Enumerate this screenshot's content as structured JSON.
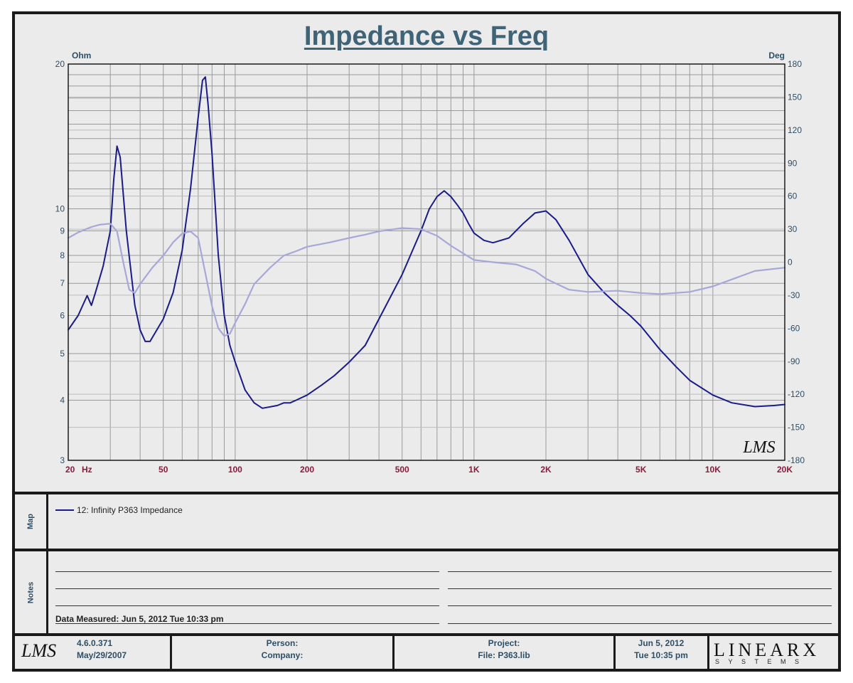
{
  "title": "Impedance vs Freq",
  "left_unit": "Ohm",
  "right_unit": "Deg",
  "y_left_ticks": [
    "20",
    "10",
    "9",
    "8",
    "7",
    "6",
    "5",
    "4",
    "3"
  ],
  "y_right_ticks": [
    "180",
    "150",
    "120",
    "90",
    "60",
    "30",
    "0",
    "-30",
    "-60",
    "-90",
    "-120",
    "-150",
    "-180"
  ],
  "x_ticks": [
    "20",
    "Hz",
    "50",
    "100",
    "200",
    "500",
    "1K",
    "2K",
    "5K",
    "10K",
    "20K"
  ],
  "watermark": "LMS",
  "map_label": "Map",
  "notes_label": "Notes",
  "legend": {
    "label": "12: Infinity P363 Impedance"
  },
  "notes": {
    "measured": "Data Measured: Jun  5, 2012  Tue 10:33 pm"
  },
  "footer": {
    "logo": "LMS",
    "version": "4.6.0.371",
    "version_date": "May/29/2007",
    "person": "Person:",
    "company": "Company:",
    "project": "Project:",
    "file": "File: P363.lib",
    "date": "Jun  5, 2012",
    "time": "Tue 10:35 pm",
    "brand_top": "LINEARX",
    "brand_bottom": "SYSTEMS"
  },
  "colors": {
    "impedance": "#1a1a8c",
    "phase": "#a7a7d8",
    "axis_text": "#2e4e66",
    "x_tick_text": "#8a1b3c",
    "grid": "#9a9a9a"
  },
  "chart_data": {
    "type": "line",
    "title": "Impedance vs Freq",
    "x_scale": "log",
    "y_scale": "log",
    "xlim": [
      20,
      20000
    ],
    "ylim": [
      3,
      20
    ],
    "y2lim": [
      -180,
      180
    ],
    "grid": true,
    "series": [
      {
        "name": "12: Infinity P363 Impedance",
        "axis": "left",
        "x": [
          20,
          22,
          24,
          25,
          26,
          28,
          30,
          31,
          32,
          33,
          35,
          38,
          40,
          42,
          44,
          46,
          50,
          55,
          60,
          65,
          70,
          73,
          75,
          77,
          80,
          85,
          90,
          95,
          100,
          110,
          120,
          130,
          150,
          160,
          170,
          180,
          200,
          230,
          260,
          300,
          350,
          400,
          500,
          600,
          650,
          700,
          750,
          800,
          850,
          900,
          950,
          1000,
          1100,
          1200,
          1400,
          1600,
          1800,
          2000,
          2200,
          2500,
          3000,
          3500,
          4000,
          4500,
          5000,
          6000,
          7000,
          8000,
          10000,
          12000,
          15000,
          18000,
          20000
        ],
        "y": [
          5.6,
          6.0,
          6.6,
          6.3,
          6.7,
          7.6,
          9.0,
          11.5,
          13.5,
          12.8,
          9.0,
          6.3,
          5.6,
          5.3,
          5.3,
          5.5,
          5.9,
          6.7,
          8.2,
          11.0,
          15.5,
          18.5,
          18.8,
          16.5,
          13.0,
          8.0,
          6.0,
          5.2,
          4.8,
          4.2,
          3.95,
          3.85,
          3.9,
          3.95,
          3.95,
          4.0,
          4.1,
          4.3,
          4.5,
          4.8,
          5.2,
          5.9,
          7.3,
          9.0,
          10.0,
          10.6,
          10.9,
          10.6,
          10.2,
          9.8,
          9.3,
          8.9,
          8.6,
          8.5,
          8.7,
          9.3,
          9.8,
          9.9,
          9.5,
          8.6,
          7.3,
          6.7,
          6.3,
          6.0,
          5.7,
          5.1,
          4.7,
          4.4,
          4.1,
          3.95,
          3.88,
          3.9,
          3.92
        ]
      },
      {
        "name": "Phase",
        "axis": "right",
        "x": [
          20,
          22,
          25,
          27,
          30,
          32,
          34,
          36,
          38,
          40,
          45,
          50,
          55,
          60,
          65,
          70,
          75,
          80,
          85,
          90,
          95,
          100,
          110,
          120,
          140,
          160,
          180,
          200,
          250,
          300,
          350,
          400,
          500,
          600,
          700,
          800,
          900,
          1000,
          1200,
          1500,
          1800,
          2000,
          2500,
          3000,
          4000,
          5000,
          6000,
          8000,
          10000,
          15000,
          20000
        ],
        "y": [
          22,
          27,
          32,
          34,
          35,
          28,
          0,
          -25,
          -28,
          -20,
          -5,
          6,
          18,
          26,
          28,
          22,
          -10,
          -40,
          -60,
          -67,
          -65,
          -55,
          -38,
          -20,
          -5,
          6,
          10,
          14,
          18,
          22,
          25,
          28,
          31,
          30,
          24,
          15,
          8,
          2,
          0,
          -2,
          -8,
          -15,
          -25,
          -27,
          -26,
          -28,
          -29,
          -27,
          -22,
          -8,
          -5
        ]
      }
    ]
  }
}
